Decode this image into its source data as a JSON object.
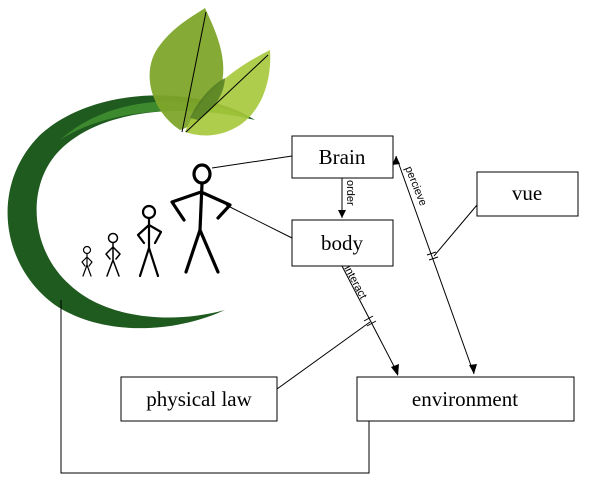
{
  "nodes": {
    "brain": "Brain",
    "body": "body",
    "vue": "vue",
    "physical_law": "physical law",
    "environment": "environment"
  },
  "edges": {
    "order": "order",
    "perceive": "percieve",
    "interact": "interact"
  },
  "colors": {
    "ring_dark": "#1f5a1f",
    "ring_light": "#3d8a2e",
    "leaf_light": "#a6c83a",
    "leaf_mid": "#7ea52a",
    "leaf_dark": "#4f7a22"
  },
  "icons": {
    "logo": "green-ring-with-leaves-logo",
    "figures": "evolving-stick-figures"
  }
}
